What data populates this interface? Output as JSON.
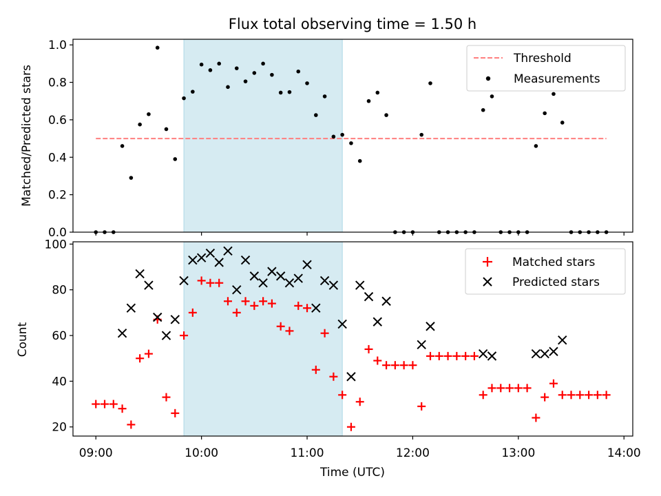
{
  "chart_data": [
    {
      "type": "scatter",
      "title": "Flux total observing time = 1.50 h",
      "ylabel": "Matched/Predicted stars",
      "xlabel": "",
      "ylim": [
        0,
        1.03
      ],
      "yticks": [
        "0.0",
        "0.2",
        "0.4",
        "0.6",
        "0.8",
        "1.0"
      ],
      "ytick_values": [
        0,
        0.2,
        0.4,
        0.6,
        0.8,
        1.0
      ],
      "legend_position": "top-right",
      "shaded_span": {
        "x": [
          "09:50",
          "11:20"
        ],
        "color": "#add8e6"
      },
      "threshold": {
        "name": "Threshold",
        "y": 0.5,
        "x": [
          "09:00",
          "13:50"
        ],
        "color": "#ff7f7f",
        "style": "dashed"
      },
      "series": [
        {
          "name": "Measurements",
          "marker": "dot",
          "color": "#000000",
          "points": [
            [
              "09:00",
              0.0
            ],
            [
              "09:05",
              0.0
            ],
            [
              "09:10",
              0.0
            ],
            [
              "09:15",
              0.46
            ],
            [
              "09:20",
              0.29
            ],
            [
              "09:25",
              0.575
            ],
            [
              "09:30",
              0.63
            ],
            [
              "09:35",
              0.985
            ],
            [
              "09:40",
              0.55
            ],
            [
              "09:45",
              0.39
            ],
            [
              "09:50",
              0.715
            ],
            [
              "09:55",
              0.75
            ],
            [
              "10:00",
              0.895
            ],
            [
              "10:05",
              0.865
            ],
            [
              "10:10",
              0.9
            ],
            [
              "10:15",
              0.775
            ],
            [
              "10:20",
              0.875
            ],
            [
              "10:25",
              0.805
            ],
            [
              "10:30",
              0.85
            ],
            [
              "10:35",
              0.9
            ],
            [
              "10:40",
              0.84
            ],
            [
              "10:45",
              0.745
            ],
            [
              "10:50",
              0.748
            ],
            [
              "10:55",
              0.858
            ],
            [
              "11:00",
              0.795
            ],
            [
              "11:05",
              0.625
            ],
            [
              "11:10",
              0.725
            ],
            [
              "11:15",
              0.51
            ],
            [
              "11:20",
              0.52
            ],
            [
              "11:25",
              0.475
            ],
            [
              "11:30",
              0.38
            ],
            [
              "11:35",
              0.7
            ],
            [
              "11:40",
              0.745
            ],
            [
              "11:45",
              0.625
            ],
            [
              "11:50",
              0.0
            ],
            [
              "11:55",
              0.0
            ],
            [
              "12:00",
              0.0
            ],
            [
              "12:05",
              0.52
            ],
            [
              "12:10",
              0.795
            ],
            [
              "12:15",
              0.0
            ],
            [
              "12:20",
              0.0
            ],
            [
              "12:25",
              0.0
            ],
            [
              "12:30",
              0.0
            ],
            [
              "12:35",
              0.0
            ],
            [
              "12:40",
              0.652
            ],
            [
              "12:45",
              0.725
            ],
            [
              "12:50",
              0.0
            ],
            [
              "12:55",
              0.0
            ],
            [
              "13:00",
              0.0
            ],
            [
              "13:05",
              0.0
            ],
            [
              "13:10",
              0.46
            ],
            [
              "13:15",
              0.635
            ],
            [
              "13:20",
              0.738
            ],
            [
              "13:25",
              0.585
            ],
            [
              "13:30",
              0.0
            ],
            [
              "13:35",
              0.0
            ],
            [
              "13:40",
              0.0
            ],
            [
              "13:45",
              0.0
            ],
            [
              "13:50",
              0.0
            ]
          ]
        }
      ]
    },
    {
      "type": "scatter",
      "title": "",
      "xlabel": "Time (UTC)",
      "ylabel": "Count",
      "ylim": [
        16,
        101
      ],
      "yticks": [
        "20",
        "40",
        "60",
        "80",
        "100"
      ],
      "ytick_values": [
        20,
        40,
        60,
        80,
        100
      ],
      "xlim": [
        "08:47",
        "14:05"
      ],
      "xticks": [
        "09:00",
        "10:00",
        "11:00",
        "12:00",
        "13:00",
        "14:00"
      ],
      "legend_position": "top-right",
      "shaded_span": {
        "x": [
          "09:50",
          "11:20"
        ],
        "color": "#add8e6"
      },
      "series": [
        {
          "name": "Matched stars",
          "marker": "plus",
          "color": "#ff0000",
          "points": [
            [
              "09:00",
              30
            ],
            [
              "09:05",
              30
            ],
            [
              "09:10",
              30
            ],
            [
              "09:15",
              28
            ],
            [
              "09:20",
              21
            ],
            [
              "09:25",
              50
            ],
            [
              "09:30",
              52
            ],
            [
              "09:35",
              67
            ],
            [
              "09:40",
              33
            ],
            [
              "09:45",
              26
            ],
            [
              "09:50",
              60
            ],
            [
              "09:55",
              70
            ],
            [
              "10:00",
              84
            ],
            [
              "10:05",
              83
            ],
            [
              "10:10",
              83
            ],
            [
              "10:15",
              75
            ],
            [
              "10:20",
              70
            ],
            [
              "10:25",
              75
            ],
            [
              "10:30",
              73
            ],
            [
              "10:35",
              75
            ],
            [
              "10:40",
              74
            ],
            [
              "10:45",
              64
            ],
            [
              "10:50",
              62
            ],
            [
              "10:55",
              73
            ],
            [
              "11:00",
              72
            ],
            [
              "11:05",
              45
            ],
            [
              "11:10",
              61
            ],
            [
              "11:15",
              42
            ],
            [
              "11:20",
              34
            ],
            [
              "11:25",
              20
            ],
            [
              "11:30",
              31
            ],
            [
              "11:35",
              54
            ],
            [
              "11:40",
              49
            ],
            [
              "11:45",
              47
            ],
            [
              "11:50",
              47
            ],
            [
              "11:55",
              47
            ],
            [
              "12:00",
              47
            ],
            [
              "12:05",
              29
            ],
            [
              "12:10",
              51
            ],
            [
              "12:15",
              51
            ],
            [
              "12:20",
              51
            ],
            [
              "12:25",
              51
            ],
            [
              "12:30",
              51
            ],
            [
              "12:35",
              51
            ],
            [
              "12:40",
              34
            ],
            [
              "12:45",
              37
            ],
            [
              "12:50",
              37
            ],
            [
              "12:55",
              37
            ],
            [
              "13:00",
              37
            ],
            [
              "13:05",
              37
            ],
            [
              "13:10",
              24
            ],
            [
              "13:15",
              33
            ],
            [
              "13:20",
              39
            ],
            [
              "13:25",
              34
            ],
            [
              "13:30",
              34
            ],
            [
              "13:35",
              34
            ],
            [
              "13:40",
              34
            ],
            [
              "13:45",
              34
            ],
            [
              "13:50",
              34
            ]
          ]
        },
        {
          "name": "Predicted stars",
          "marker": "x",
          "color": "#000000",
          "points": [
            [
              "09:15",
              61
            ],
            [
              "09:20",
              72
            ],
            [
              "09:25",
              87
            ],
            [
              "09:30",
              82
            ],
            [
              "09:35",
              68
            ],
            [
              "09:40",
              60
            ],
            [
              "09:45",
              67
            ],
            [
              "09:50",
              84
            ],
            [
              "09:55",
              93
            ],
            [
              "10:00",
              94
            ],
            [
              "10:05",
              96
            ],
            [
              "10:10",
              92
            ],
            [
              "10:15",
              97
            ],
            [
              "10:20",
              80
            ],
            [
              "10:25",
              93
            ],
            [
              "10:30",
              86
            ],
            [
              "10:35",
              83
            ],
            [
              "10:40",
              88
            ],
            [
              "10:45",
              86
            ],
            [
              "10:50",
              83
            ],
            [
              "10:55",
              85
            ],
            [
              "11:00",
              91
            ],
            [
              "11:05",
              72
            ],
            [
              "11:10",
              84
            ],
            [
              "11:15",
              82
            ],
            [
              "11:20",
              65
            ],
            [
              "11:25",
              42
            ],
            [
              "11:30",
              82
            ],
            [
              "11:35",
              77
            ],
            [
              "11:40",
              66
            ],
            [
              "11:45",
              75
            ],
            [
              "12:05",
              56
            ],
            [
              "12:10",
              64
            ],
            [
              "12:40",
              52
            ],
            [
              "12:45",
              51
            ],
            [
              "13:10",
              52
            ],
            [
              "13:15",
              52
            ],
            [
              "13:20",
              53
            ],
            [
              "13:25",
              58
            ]
          ]
        }
      ]
    }
  ]
}
